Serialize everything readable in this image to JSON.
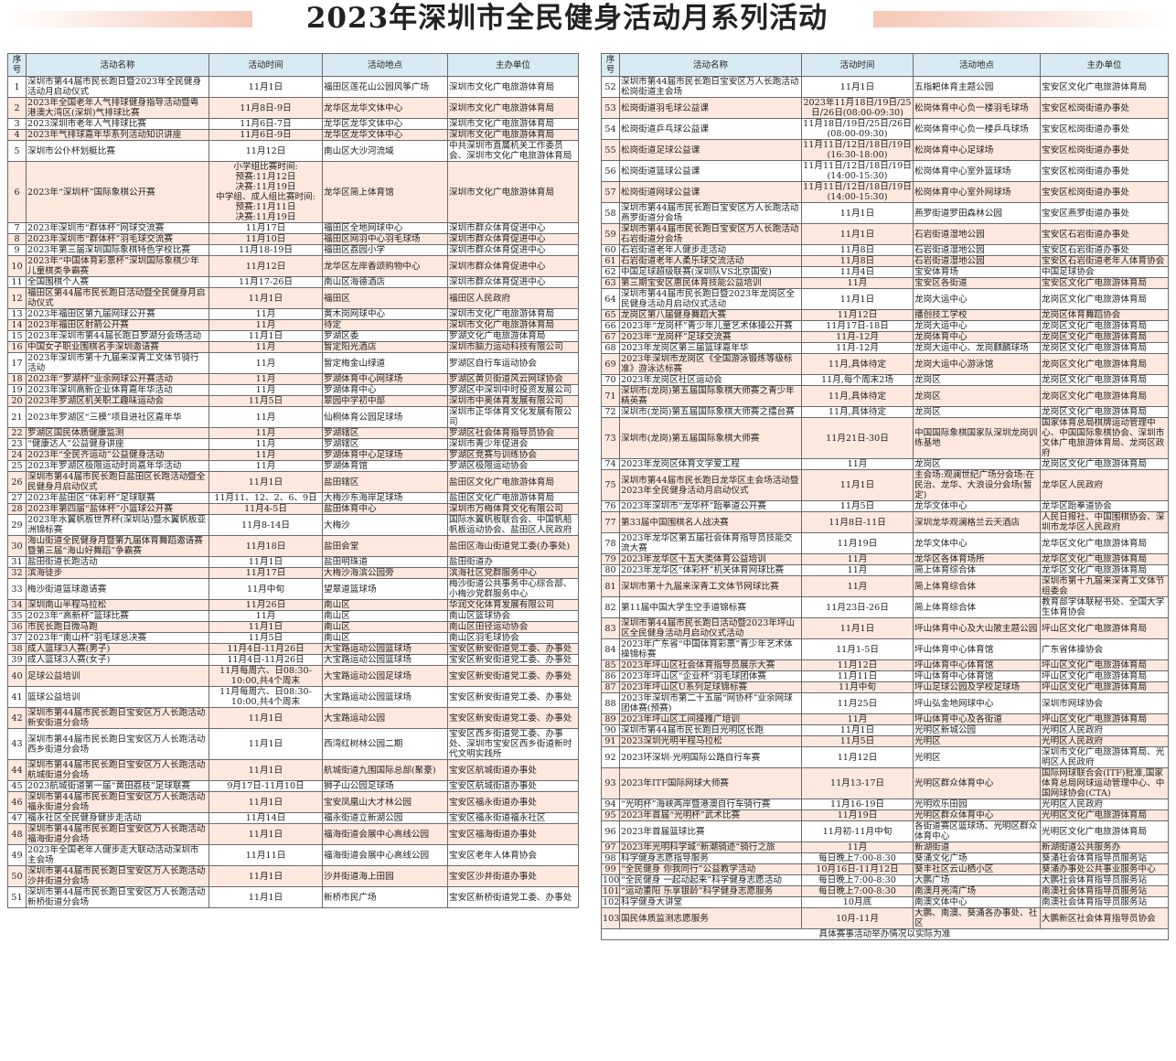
{
  "title": "2023年深圳市全民健身活动月系列活动",
  "colors": {
    "header_bg": "#d8eaf4",
    "row_alt_bg": "#fde8de",
    "title_bar": "#f6c8b6"
  },
  "headers": [
    "序号",
    "活动名称",
    "活动时间",
    "活动地点",
    "主办单位"
  ],
  "left_rows": [
    [
      "1",
      "深圳市第44届市民长跑日暨2023年全民健身活动月启动仪式",
      "11月1日",
      "福田区莲花山公园风筝广场",
      "深圳市文化广电旅游体育局"
    ],
    [
      "2",
      "2023年全国老年人气排球健身指导活动暨粤港澳大湾区(深圳)气排球比赛",
      "11月8日-9日",
      "龙华区龙华文体中心",
      "深圳市文化广电旅游体育局"
    ],
    [
      "3",
      "2023深圳市老年人气排球比赛",
      "11月6日-7日",
      "龙华区龙华文体中心",
      "深圳市文化广电旅游体育局"
    ],
    [
      "4",
      "2023年气排球嘉年华系列活动知识讲座",
      "11月6日-9日",
      "龙华区龙华文体中心",
      "深圳市文化广电旅游体育局"
    ],
    [
      "5",
      "深圳市公仆杯划艇比赛",
      "11月12日",
      "南山区大沙河流域",
      "中共深圳市直属机关工作委员会、深圳市文化广电旅游体育局"
    ],
    [
      "6",
      "2023年“深圳杯”国际象棋公开赛",
      "小学组比赛时间:\n预赛:11月12日\n决赛:11月19日\n中学组、成人组比赛时间:\n预赛:11月11日\n决赛:11月19日",
      "龙华区简上体育馆",
      "深圳市文化广电旅游体育局"
    ],
    [
      "7",
      "2023年深圳市“群体杯”网球交流赛",
      "11月17日",
      "福田区全地网球中心",
      "深圳市群众体育促进中心"
    ],
    [
      "8",
      "2023年深圳市“群体杯”羽毛球交流赛",
      "11月10日",
      "福田区网羽中心羽毛球场",
      "深圳市群众体育促进中心"
    ],
    [
      "9",
      "2023年第三届深圳国际象棋特色学校比赛",
      "11月18-19日",
      "福田区荔园小学",
      "深圳市群众体育促进中心"
    ],
    [
      "10",
      "2023年“中国体育彩票杯”深圳国际象棋少年儿童棋类争霸赛",
      "11月12日",
      "龙华区左岸香颂购物中心",
      "深圳市群众体育促进中心"
    ],
    [
      "11",
      "全国围棋个人赛",
      "11月17-26日",
      "南山区海德酒店",
      "深圳市群众体育促进中心"
    ],
    [
      "12",
      "福田区第44届市民长跑日活动暨全民健身月启动仪式",
      "11月1日",
      "福田区",
      "福田区人民政府"
    ],
    [
      "13",
      "2023年福田区第九届网球公开赛",
      "11月",
      "黄木岗网球中心",
      "深圳市文化广电旅游体育局"
    ],
    [
      "14",
      "2023年福田区射箭公开赛",
      "11月",
      "待定",
      "深圳市文化广电旅游体育局"
    ],
    [
      "15",
      "2023年深圳市第44届长跑日罗湖分会场活动",
      "11月1日",
      "罗湖区委",
      "罗湖文化广电旅游体育局"
    ],
    [
      "16",
      "中国女子职业围棋名手深圳邀请赛",
      "11月",
      "暂定阳光酒店",
      "深圳市脑力运动科技有限公司"
    ],
    [
      "17",
      "2023年深圳市第十九届来深青工文体节骑行活动",
      "11月",
      "暂定梅金山绿道",
      "罗湖区自行车运动协会"
    ],
    [
      "18",
      "2023年“罗湖杯”业余网球公开赛活动",
      "11月",
      "罗湖体育中心网球场",
      "罗湖区黄贝街道风云网球协会"
    ],
    [
      "19",
      "2023年深圳高新企业体育嘉年华活动",
      "11月",
      "罗湖体育中心",
      "罗湖区中深圳中时投资发展公司"
    ],
    [
      "20",
      "2023年罗湖区机关职工趣味运动会",
      "11月5日",
      "翠园中学初中部",
      "深圳市中奥体育发展有限公司"
    ],
    [
      "21",
      "2023年罗湖区“三模”项目进社区嘉年华",
      "11月",
      "仙桐体育公园足球场",
      "深圳市正华体育文化发展有限公司"
    ],
    [
      "22",
      "罗湖区国民体质健康监测",
      "11月",
      "罗湖辖区",
      "罗湖区社会体育指导员协会"
    ],
    [
      "23",
      "“健康达人”公益健身讲座",
      "11月",
      "罗湖辖区",
      "深圳市青少年促进会"
    ],
    [
      "24",
      "2023年“全民齐运动”公益健身活动",
      "11月",
      "罗湖体育中心足球场",
      "罗湖区竞赛与训练协会"
    ],
    [
      "25",
      "2023年罗湖区极限运动时尚嘉年华活动",
      "11月",
      "罗湖体育馆",
      "罗湖区极限运动协会"
    ],
    [
      "26",
      "深圳市第44届市民长跑日盐田区长跑活动暨全民健身月启动仪式",
      "11月1日",
      "盐田辖区",
      "盐田区文化广电旅游体育局"
    ],
    [
      "27",
      "2023年盐田区“体彩杯”足球联赛",
      "11月11、12、2、6、9日",
      "大梅沙东海岸足球场",
      "盐田区文化广电旅游体育局"
    ],
    [
      "28",
      "2023年第四届“盐体杯”小篮球公开赛",
      "11月4-5日",
      "盐田体育中心",
      "深圳市万梅体育文化有限公司"
    ],
    [
      "29",
      "2023年水翼帆板世界杯(深圳站)暨水翼帆板亚洲锦标赛",
      "11月8-14日",
      "大梅沙",
      "国际水翼帆板联合会、中国帆船帆板运动协会、盐田区人民政府"
    ],
    [
      "30",
      "海山街道全民健身月暨第九届体育舞蹈邀请赛暨第三届“海山好舞蹈”争霸赛",
      "11月18日",
      "盐田会堂",
      "盐田区海山街道党工委(办事处)"
    ],
    [
      "31",
      "盐田街道长跑活动",
      "11月1日",
      "盐田明珠道",
      "盐田街道办"
    ],
    [
      "32",
      "滨海徒步",
      "11月17日",
      "大梅沙海滨公园旁",
      "滨海社区党群服务中心"
    ],
    [
      "33",
      "梅沙街道篮球邀请赛",
      "11月中旬",
      "望翠道篮球场",
      "梅沙街道公共事务中心综合部、小梅沙党群服务中心"
    ],
    [
      "34",
      "深圳南山半程马拉松",
      "11月26日",
      "南山区",
      "华润文化体育发展有限公司"
    ],
    [
      "35",
      "2023年“高新杯”篮球比赛",
      "11月",
      "南山区",
      "南山区篮球协会"
    ],
    [
      "36",
      "市民长跑日微马跑",
      "11月1日",
      "南山区",
      "南山区田径运动协会"
    ],
    [
      "37",
      "2023年“南山杯”羽毛球总决赛",
      "11月5日",
      "南山区",
      "南山区羽毛球协会"
    ],
    [
      "38",
      "成人篮球3人赛(男子)",
      "11月4日-11月26日",
      "大宝路运动公园篮球场",
      "宝安区新安街道党工委、办事处"
    ],
    [
      "39",
      "成人篮球3人赛(女子)",
      "11月4日-11月26日",
      "大宝路运动公园篮球场",
      "宝安区新安街道党工委、办事处"
    ],
    [
      "40",
      "足球公益培训",
      "11月每周六、日08:30-10:00,共4个周末",
      "大宝路运动公园足球场",
      "宝安区新安街道党工委、办事处"
    ],
    [
      "41",
      "篮球公益培训",
      "11月每周六、日08:30-10:00,共4个周末",
      "大宝路运动公园篮球场",
      "宝安区新安街道党工委、办事处"
    ],
    [
      "42",
      "深圳市第44届市民长跑日宝安区万人长跑活动新安街道分会场",
      "11月1日",
      "大宝路运动公园",
      "宝安区新安街道党工委、办事处"
    ],
    [
      "43",
      "深圳市第44届市民长跑日宝安区万人长跑活动西乡街道分会场",
      "11月1日",
      "西湾红树林公园二期",
      "宝安区西乡街道党工委、办事处、深圳市宝安区西乡街道新时代文明实践所"
    ],
    [
      "44",
      "深圳市第44届市民长跑日宝安区万人长跑活动航城街道分会场",
      "11月1日",
      "航城街道九围国际总部(聚豪)",
      "宝安区航城街道办事处"
    ],
    [
      "45",
      "2023航城街道第一届“黄田荔枝”足球联赛",
      "9月17日-11月10日",
      "狮子山公园足球场",
      "宝安区航城街道办事处"
    ],
    [
      "46",
      "深圳市第44届市民长跑日宝安区万人长跑活动福永街道分会场",
      "11月1日",
      "宝安凤凰山大才林公园",
      "宝安区福永街道办事处"
    ],
    [
      "47",
      "福永社区全民健身健步走活动",
      "11月14日",
      "福永街道立新湖公园",
      "宝安区福永街道福永社区"
    ],
    [
      "48",
      "深圳市第44届市民长跑日宝安区万人长跑活动福海街道分会场",
      "11月1日",
      "福海街道会展中心高线公园",
      "宝安区福海街道办事处"
    ],
    [
      "49",
      "2023年全国老年人健步走大联动活动深圳市主会场",
      "11月11日",
      "福海街道会展中心高线公园",
      "宝安区老年人体育协会"
    ],
    [
      "50",
      "深圳市第44届市民长跑日宝安区万人长跑活动沙井街道分会场",
      "11月1日",
      "沙井街道海上田园",
      "宝安区沙井街道办事处"
    ],
    [
      "51",
      "深圳市第44届市民长跑日宝安区万人长跑活动新桥街道分会场",
      "11月1日",
      "新桥市民广场",
      "宝安区新桥街道党工委、办事处"
    ]
  ],
  "right_rows": [
    [
      "52",
      "深圳市第44届市民长跑日宝安区万人长跑活动松岗街道主会场",
      "11月1日",
      "五指耙体育主题公园",
      "宝安区文化广电旅游体育局"
    ],
    [
      "53",
      "松岗街道羽毛球公益课",
      "2023年11月18日/19日/25日/26日(08:00-09:30)",
      "松岗体育中心负一楼羽毛球场",
      "宝安区松岗街道办事处"
    ],
    [
      "54",
      "松岗街道乒乓球公益课",
      "11月18日/19日/25日/26日(08:00-09:30)",
      "松岗体育中心负一楼乒乓球场",
      "宝安区松岗街道办事处"
    ],
    [
      "55",
      "松岗街道足球公益课",
      "11月11日/12日/18日/19日(16:30-18:00)",
      "松岗体育中心足球场",
      "宝安区松岗街道办事处"
    ],
    [
      "56",
      "松岗街道篮球公益课",
      "11月11日/12日/18日/19日(14:00-15:30)",
      "松岗体育中心室外篮球场",
      "宝安区松岗街道办事处"
    ],
    [
      "57",
      "松岗街道网球公益课",
      "11月11日/12日/18日/19日(14:00-15:30)",
      "松岗体育中心室外网球场",
      "宝安区松岗街道办事处"
    ],
    [
      "58",
      "深圳市第44届市民长跑日宝安区万人长跑活动燕罗街道分会场",
      "11月1日",
      "燕罗街道罗田森林公园",
      "宝安区燕罗街道办事处"
    ],
    [
      "59",
      "深圳市第44届市民长跑日宝安区万人长跑活动石岩街道分会场",
      "11月1日",
      "石岩街道湿地公园",
      "宝安区石岩街道办事处"
    ],
    [
      "60",
      "石岩街道老年人健步走活动",
      "11月8日",
      "石岩街道湿地公园",
      "宝安区石岩街道办事处"
    ],
    [
      "61",
      "石岩街道老年人柔乐球交流活动",
      "11月8日",
      "石岩街道湿地公园",
      "宝安区石岩街道老年人体育协会"
    ],
    [
      "62",
      "中国足球超级联赛(深圳队VS北京国安)",
      "11月4日",
      "宝安体育场",
      "中国足球协会"
    ],
    [
      "63",
      "第三期宝安区惠民体育技能公益培训",
      "11月",
      "宝安区各街道",
      "宝安区文化广电旅游体育局"
    ],
    [
      "64",
      "深圳市第44届市民长跑日暨2023年龙岗区全民健身活动月启动仪式活动",
      "11月1日",
      "龙岗大运中心",
      "龙岗区文化广电旅游体育局"
    ],
    [
      "65",
      "龙岗区第八届健身舞蹈大赛",
      "11月12日",
      "播创技工学校",
      "龙岗区体育舞蹈协会"
    ],
    [
      "66",
      "2023年“龙岗杯”青少年儿童艺术体操公开赛",
      "11月17日-18日",
      "龙岗大运中心",
      "龙岗区文化广电旅游体育局"
    ],
    [
      "67",
      "2023年“龙岗杯”足球交流赛",
      "11月-12月",
      "龙岗体育中心",
      "龙岗区文化广电旅游体育局"
    ],
    [
      "68",
      "2023年龙岗区第三届篮球嘉年华",
      "11月-12月",
      "龙岗大运中心、龙岗麒麟球场",
      "龙岗区文化广电旅游体育局"
    ],
    [
      "69",
      "2023年深圳市龙岗区《全国游泳锻炼等级标准》游泳达标赛",
      "11月,具体待定",
      "龙岗大运中心游泳馆",
      "龙岗区文化广电旅游体育局"
    ],
    [
      "70",
      "2023年龙岗区社区运动会",
      "11月,每个周末2场",
      "龙岗区",
      "龙岗区文化广电旅游体育局"
    ],
    [
      "71",
      "深圳市(龙岗)第五届国际象棋大师赛之青少年精英赛",
      "11月,具体待定",
      "龙岗区",
      "龙岗区文化广电旅游体育局"
    ],
    [
      "72",
      "深圳市(龙岗)第五届国际象棋大师赛之擂台赛",
      "11月,具体待定",
      "龙岗区",
      "龙岗区文化广电旅游体育局"
    ],
    [
      "73",
      "深圳市(龙岗)第五届国际象棋大师赛",
      "11月21日-30日",
      "中国国际象棋国家队深圳龙岗训练基地",
      "国家体育总局棋牌运动管理中心、中国国际象棋协会、深圳市文体广电旅游体育局、龙岗区政府"
    ],
    [
      "74",
      "2023年龙岗区体育文学爱工程",
      "11月",
      "龙岗区",
      "龙岗区文化广电旅游体育局"
    ],
    [
      "75",
      "深圳市第44届市民长跑日龙华区主会场活动暨2023年全民健身活动月启动仪式",
      "11月1日",
      "主会场:观澜世纪广场分会场:在民治、龙华、大浪设分会场(暂定)",
      "龙华区人民政府"
    ],
    [
      "76",
      "2023年深圳市“龙华杯”跆拳道公开赛",
      "11月5日",
      "龙华文体中心",
      "龙华区跆拳道协会"
    ],
    [
      "77",
      "第33届中国围棋名人战决赛",
      "11月8日-11日",
      "深圳龙华观澜格兰云天酒店",
      "人民日报社、中国围棋协会、深圳市龙华区人民政府"
    ],
    [
      "78",
      "2023年龙华区第五届社会体育指导员技能交流大赛",
      "11月19日",
      "龙华文体中心",
      "龙华区文化广电旅游体育局"
    ],
    [
      "79",
      "2023年龙华区十五大类体育公益培训",
      "11月",
      "龙华区各体育场所",
      "龙华区文化广电旅游体育局"
    ],
    [
      "80",
      "2023年龙华区“体彩杯”机关体育网球比赛",
      "11月",
      "简上体育综合体",
      "龙华区文化广电旅游体育局"
    ],
    [
      "81",
      "深圳市第十九届来深青工文体节网球比赛",
      "11月",
      "简上体育综合体",
      "深圳市第十九届来深青工文体节组委会"
    ],
    [
      "82",
      "第11届中国大学生空手道锦标赛",
      "11月23日-26日",
      "简上体育综合体",
      "教育部学体联秘书处、全国大学生体育协会"
    ],
    [
      "83",
      "深圳市第44届市民长跑日活动暨2023年坪山区全民健身活动月启动仪式活动",
      "11月1日",
      "坪山体育中心及大山陂主题公园",
      "坪山区文化广电旅游体育局"
    ],
    [
      "84",
      "2023年广东省“中国体育彩票”青少年艺术体操锦标赛",
      "11月1-5日",
      "坪山体育中心体育馆",
      "广东省体操协会"
    ],
    [
      "85",
      "2023年坪山区社会体育指导员展示大赛",
      "11月12日",
      "坪山体育中心体育馆",
      "坪山区文化广电旅游体育局"
    ],
    [
      "86",
      "2023年坪山区“企业杯”羽毛球团体赛",
      "11月11日",
      "坪山体育中心体育馆",
      "坪山区文化广电旅游体育局"
    ],
    [
      "87",
      "2023年坪山区U系列足球锦标赛",
      "11月中旬",
      "坪山足球公园及学校足球场",
      "坪山区文化广电旅游体育局"
    ],
    [
      "88",
      "2023年深圳市第二十五届“网协杯”业余网球团体赛(预赛)",
      "11月25日",
      "坪山弘金地网球中心",
      "深圳市网球协会"
    ],
    [
      "89",
      "2023年坪山区工间操推广培训",
      "11月",
      "坪山体育中心及各街道",
      "坪山区文化广电旅游体育局"
    ],
    [
      "90",
      "深圳市第44届市民长跑日光明区长跑",
      "11月1日",
      "光明区新城公园",
      "光明区人民政府"
    ],
    [
      "91",
      "2023深圳光明半程马拉松",
      "11月5日",
      "光明区",
      "光明区人民政府"
    ],
    [
      "92",
      "2023环深圳·光明国际公路自行车赛",
      "11月12日",
      "光明区",
      "深圳市文化广电旅游体育局、光明区人民政府"
    ],
    [
      "93",
      "2023年ITF国际网球大师赛",
      "11月13-17日",
      "光明区群众体育中心",
      "国际网球联合会(ITF)批准,国家体育总局网球运动管理中心、中国网球协会(CTA)"
    ],
    [
      "94",
      "“光明杯”海峡两岸暨港澳自行车骑行赛",
      "11月16-19日",
      "光明欢乐田园",
      "光明区人民政府"
    ],
    [
      "95",
      "2023年首届“光明杯”武术比赛",
      "11月19日",
      "光明区群众体育中心",
      "光明区文化广电旅游体育局"
    ],
    [
      "96",
      "2023年首届篮球比赛",
      "11月初-11月中旬",
      "各街道赛区篮球场、光明区群众体育中心",
      "光明区文化广电旅游体育局"
    ],
    [
      "97",
      "2023年光明科学城“新潮骑迹”骑行之旅",
      "11月",
      "新湖街道",
      "新湖街道公共服务办"
    ],
    [
      "98",
      "科学健身志愿指导服务",
      "每日晚上7:00-8:30",
      "葵涌文化广场",
      "葵涌社会体育指导员服务站"
    ],
    [
      "99",
      "“全民健身 你我同行”公益教学活动",
      "10月16日-11月12日",
      "葵丰社区云山栖小区",
      "葵涌办事处公共事业服务中心"
    ],
    [
      "100",
      "“全民健身 一起动起来”科学健身志愿活动",
      "每日晚上7:00-8:30",
      "大鹏广场",
      "大鹏社会体育指导员服务站"
    ],
    [
      "101",
      "“运动重阳 乐享银龄”科学健身志愿服务",
      "每日晚上7:00-8:30",
      "南澳月亮湾广场",
      "南澳社会体育指导员服务站"
    ],
    [
      "102",
      "科学健身大讲堂",
      "10月底",
      "南澳文体中心",
      "南澳社会体育指导员服务站"
    ],
    [
      "103",
      "国民体质监测志愿服务",
      "10月-11月",
      "大鹏、南澳、葵涌各办事处、社区",
      "大鹏新区社会体育指导员协会"
    ]
  ],
  "footnote": "具体赛事活动举办情况以实际为准"
}
